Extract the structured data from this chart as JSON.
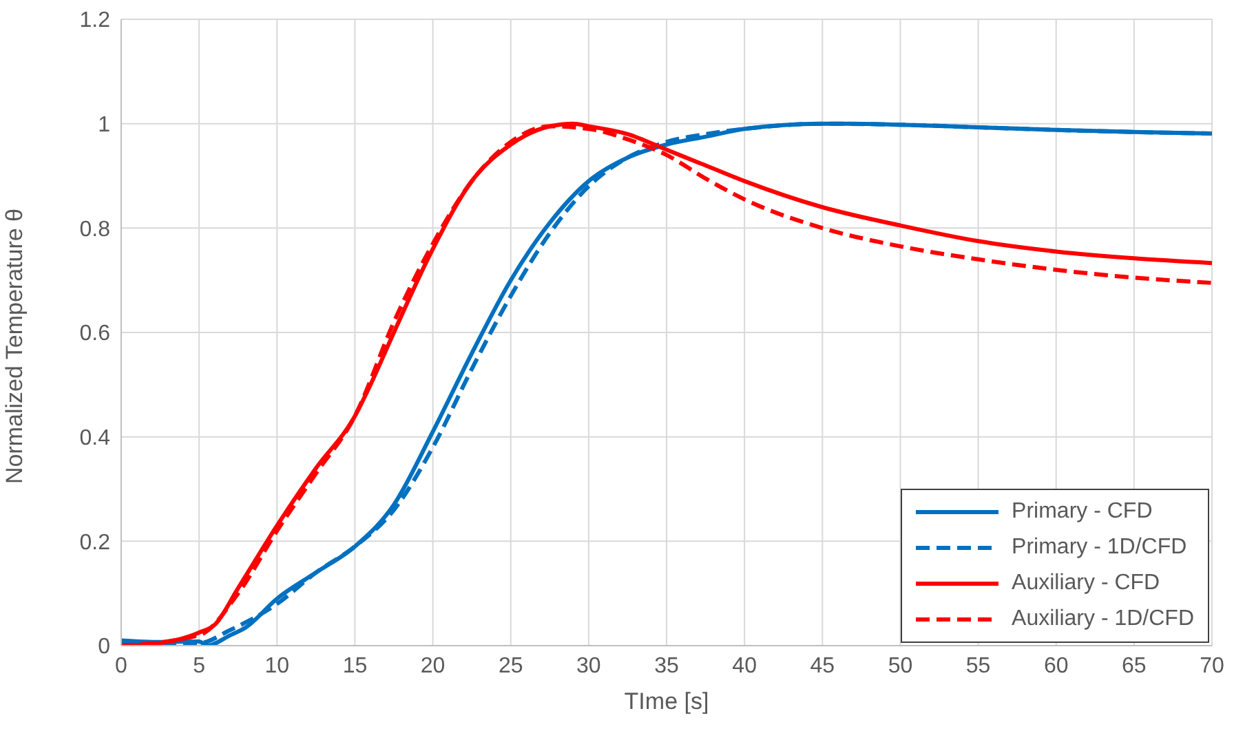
{
  "chart_data": {
    "type": "line",
    "xlabel": "TIme [s]",
    "ylabel": "Normalized Temperature θ",
    "xlim": [
      0,
      70
    ],
    "xticks": [
      0,
      5,
      10,
      15,
      20,
      25,
      30,
      35,
      40,
      45,
      50,
      55,
      60,
      65,
      70
    ],
    "ylim": [
      0,
      1.2
    ],
    "yticks": [
      0,
      0.2,
      0.4,
      0.6,
      0.8,
      1,
      1.2
    ],
    "grid": true,
    "legend": "bottom right",
    "marker": "none",
    "series": [
      {
        "name": "Primary - CFD",
        "color": "#0070c0",
        "line_style": "solid",
        "x": [
          0,
          2.5,
          5,
          5.5,
          7,
          8,
          10,
          12.5,
          15,
          17.5,
          20,
          22.5,
          25,
          27.5,
          30,
          32.5,
          35,
          37.5,
          40,
          45,
          47,
          50,
          55,
          60,
          65,
          70
        ],
        "values": [
          0.01,
          0.007,
          0.008,
          0.0,
          0.02,
          0.035,
          0.09,
          0.14,
          0.19,
          0.27,
          0.41,
          0.56,
          0.7,
          0.81,
          0.89,
          0.935,
          0.96,
          0.975,
          0.99,
          1.0,
          1.0,
          0.998,
          0.993,
          0.988,
          0.984,
          0.981
        ]
      },
      {
        "name": "Primary - 1D/CFD",
        "color": "#0070c0",
        "line_style": "dashed",
        "x": [
          0,
          5,
          7,
          10,
          12.5,
          15,
          17.5,
          20,
          22.5,
          25,
          27.5,
          30,
          32.5,
          35,
          37.5,
          40,
          45,
          50,
          55,
          60,
          65,
          70
        ],
        "values": [
          0.005,
          0.005,
          0.03,
          0.08,
          0.14,
          0.19,
          0.26,
          0.38,
          0.53,
          0.67,
          0.79,
          0.88,
          0.935,
          0.965,
          0.98,
          0.99,
          1.0,
          0.998,
          0.993,
          0.988,
          0.984,
          0.981
        ]
      },
      {
        "name": "Auxiliary - CFD",
        "color": "#ff0000",
        "line_style": "solid",
        "x": [
          0,
          2.5,
          5,
          6,
          7.5,
          10,
          12.5,
          15,
          16,
          17.5,
          20,
          22.5,
          25,
          27.5,
          29,
          30,
          32.5,
          35,
          37.5,
          40,
          45,
          50,
          55,
          60,
          65,
          70
        ],
        "values": [
          0,
          0.005,
          0.025,
          0.04,
          0.11,
          0.23,
          0.34,
          0.44,
          0.5,
          0.6,
          0.76,
          0.89,
          0.96,
          0.995,
          1.0,
          0.995,
          0.98,
          0.95,
          0.92,
          0.89,
          0.84,
          0.805,
          0.775,
          0.755,
          0.742,
          0.733
        ]
      },
      {
        "name": "Auxiliary - 1D/CFD",
        "color": "#ff0000",
        "line_style": "dashed",
        "x": [
          0,
          5,
          7.5,
          10,
          12.5,
          15,
          17.5,
          20,
          22.5,
          25,
          27.5,
          30,
          32.5,
          35,
          37.5,
          40,
          45,
          50,
          55,
          60,
          65,
          70
        ],
        "values": [
          0,
          0.02,
          0.1,
          0.22,
          0.33,
          0.44,
          0.62,
          0.77,
          0.89,
          0.965,
          0.995,
          0.99,
          0.97,
          0.94,
          0.895,
          0.855,
          0.8,
          0.765,
          0.74,
          0.72,
          0.705,
          0.695
        ]
      }
    ]
  }
}
